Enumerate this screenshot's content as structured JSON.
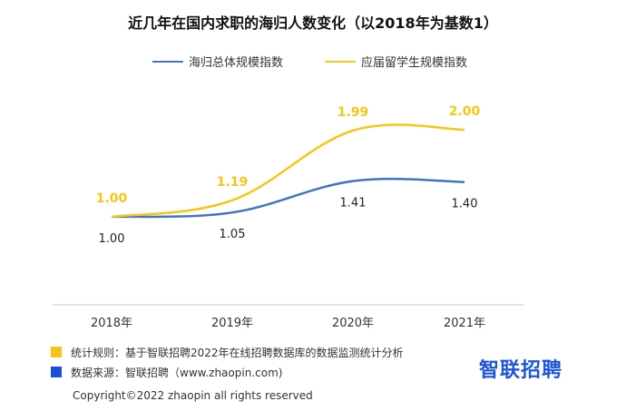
{
  "chart_data": {
    "type": "line",
    "title": "近几年在国内求职的海归人数变化（以2018年为基数1）",
    "categories": [
      "2018年",
      "2019年",
      "2020年",
      "2021年"
    ],
    "series": [
      {
        "name": "海归总体规模指数",
        "values": [
          1.0,
          1.05,
          1.41,
          1.4
        ],
        "labels": [
          "1.00",
          "1.05",
          "1.41",
          "1.40"
        ],
        "color": "#4472c4",
        "label_position": "below"
      },
      {
        "name": "应届留学生规模指数",
        "values": [
          1.0,
          1.19,
          1.99,
          2.0
        ],
        "labels": [
          "1.00",
          "1.19",
          "1.99",
          "2.00"
        ],
        "color": "#f5c518",
        "label_position": "above"
      }
    ],
    "grid": false,
    "legend_position": "top"
  },
  "notes": [
    {
      "text": "统计规则：基于智联招聘2022年在线招聘数据库的数据监测统计分析",
      "color": "#f5c518"
    },
    {
      "text": "数据来源：智联招聘（www.zhaopin.com)",
      "color": "#1d4ed8"
    }
  ],
  "logo": "智联招聘",
  "copyright": "Copyright©2022 zhaopin all rights reserved"
}
